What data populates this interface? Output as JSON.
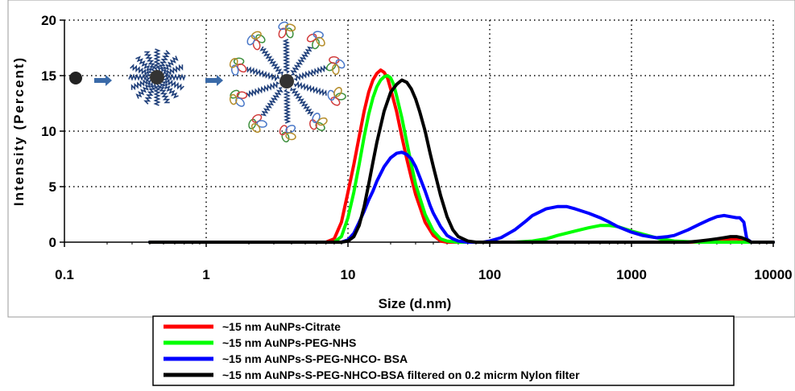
{
  "chart_data": {
    "type": "line",
    "xscale": "log",
    "xlim": [
      0.1,
      10000
    ],
    "ylim": [
      0,
      20
    ],
    "xlabel": "Size (d.nm)",
    "ylabel": "Intensity (Percent)",
    "xticks": [
      "0.1",
      "1",
      "10",
      "100",
      "1000",
      "10000"
    ],
    "yticks": [
      "0",
      "5",
      "10",
      "15",
      "20"
    ],
    "grid": true,
    "legend_position": "bottom",
    "series": [
      {
        "name": "~15 nm AuNPs-Citrate",
        "color": "#ff0000",
        "x": [
          0.4,
          7,
          8,
          9,
          10,
          11,
          12,
          13,
          14,
          15,
          16,
          17,
          18,
          19,
          20,
          22,
          24,
          26,
          28,
          30,
          35,
          40,
          45,
          50,
          60,
          70,
          80,
          2800,
          3500,
          4200,
          5000,
          5600,
          6200,
          7000,
          10000
        ],
        "y": [
          0,
          0,
          0.3,
          1.8,
          4.5,
          7.0,
          9.5,
          11.8,
          13.5,
          14.6,
          15.2,
          15.5,
          15.3,
          14.8,
          13.8,
          11.8,
          9.5,
          7.5,
          5.8,
          4.3,
          1.8,
          0.6,
          0.1,
          0,
          0,
          0,
          0,
          0,
          0.1,
          0.2,
          0.3,
          0.3,
          0.1,
          0,
          0
        ]
      },
      {
        "name": "~15 nm AuNPs-PEG-NHS",
        "color": "#00ff00",
        "x": [
          0.4,
          8,
          9,
          10,
          11,
          12,
          13,
          14,
          15,
          16,
          17,
          18,
          19,
          20,
          21,
          22,
          24,
          26,
          28,
          30,
          35,
          40,
          45,
          50,
          60,
          70,
          100,
          150,
          200,
          250,
          300,
          400,
          500,
          600,
          700,
          800,
          1000,
          1300,
          1600,
          2000,
          3000,
          4000,
          5000,
          6000,
          10000
        ],
        "y": [
          0,
          0,
          0.5,
          2.2,
          4.5,
          7.0,
          9.5,
          11.5,
          13.0,
          14.0,
          14.6,
          14.9,
          15.0,
          14.8,
          14.2,
          13.2,
          11.2,
          9.0,
          7.0,
          5.2,
          2.5,
          1.0,
          0.3,
          0.1,
          0,
          0,
          0,
          0,
          0.1,
          0.3,
          0.6,
          1.0,
          1.3,
          1.5,
          1.5,
          1.4,
          1.0,
          0.6,
          0.3,
          0.1,
          0,
          0,
          0,
          0,
          0
        ]
      },
      {
        "name": "~15 nm AuNPs-S-PEG-NHCO- BSA",
        "color": "#0000ff",
        "x": [
          0.4,
          9,
          10,
          11,
          12,
          13,
          14,
          15,
          16,
          18,
          20,
          22,
          24,
          26,
          28,
          30,
          32,
          35,
          38,
          40,
          45,
          50,
          55,
          60,
          70,
          80,
          90,
          100,
          120,
          150,
          180,
          200,
          250,
          300,
          350,
          400,
          500,
          600,
          700,
          800,
          1000,
          1200,
          1500,
          1800,
          2000,
          2500,
          3000,
          3500,
          4000,
          4500,
          5000,
          5500,
          5800,
          6200,
          6500,
          7000,
          10000
        ],
        "y": [
          0,
          0,
          0.2,
          0.8,
          1.8,
          2.8,
          3.8,
          4.6,
          5.5,
          6.8,
          7.6,
          8.0,
          8.1,
          7.9,
          7.5,
          6.8,
          5.9,
          4.6,
          3.3,
          2.6,
          1.4,
          0.6,
          0.3,
          0.1,
          0,
          0,
          0,
          0.1,
          0.4,
          1.1,
          1.9,
          2.4,
          3.0,
          3.2,
          3.2,
          3.0,
          2.6,
          2.2,
          1.8,
          1.4,
          0.9,
          0.6,
          0.4,
          0.5,
          0.6,
          1.1,
          1.6,
          2.0,
          2.3,
          2.4,
          2.3,
          2.2,
          2.2,
          1.8,
          0.3,
          0,
          0
        ]
      },
      {
        "name": "~15 nm AuNPs-S-PEG-NHCO-BSA  filtered on 0.2 micrm Nylon filter",
        "color": "#000000",
        "x": [
          0.4,
          9,
          10,
          11,
          12,
          13,
          14,
          15,
          16,
          18,
          20,
          22,
          24,
          26,
          28,
          30,
          32,
          35,
          38,
          40,
          45,
          50,
          55,
          60,
          70,
          80,
          2500,
          3000,
          3500,
          4000,
          4500,
          5000,
          5500,
          6000,
          6500,
          7000,
          10000
        ],
        "y": [
          0,
          0,
          0.1,
          0.5,
          1.5,
          3.2,
          5.2,
          7.2,
          9.0,
          11.8,
          13.5,
          14.2,
          14.6,
          14.4,
          13.8,
          12.9,
          11.8,
          10.0,
          8.0,
          6.8,
          4.2,
          2.3,
          1.1,
          0.5,
          0.1,
          0,
          0,
          0.1,
          0.2,
          0.3,
          0.4,
          0.5,
          0.5,
          0.4,
          0.2,
          0,
          0
        ]
      }
    ]
  }
}
